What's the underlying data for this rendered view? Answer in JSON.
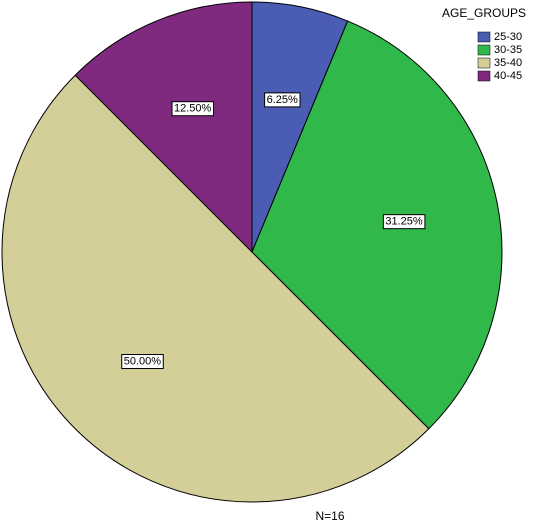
{
  "chart_data": {
    "type": "pie",
    "categories": [
      "25-30",
      "30-35",
      "35-40",
      "40-45"
    ],
    "values": [
      6.25,
      31.25,
      50,
      12.5
    ],
    "value_labels": [
      "6.25%",
      "31.25%",
      "50.00%",
      "12.50%"
    ],
    "colors": [
      "#4a5cb4",
      "#30b94a",
      "#d4ce98",
      "#7f2a7f"
    ],
    "legend_title": "AGE_GROUPS",
    "note": "N=16"
  }
}
